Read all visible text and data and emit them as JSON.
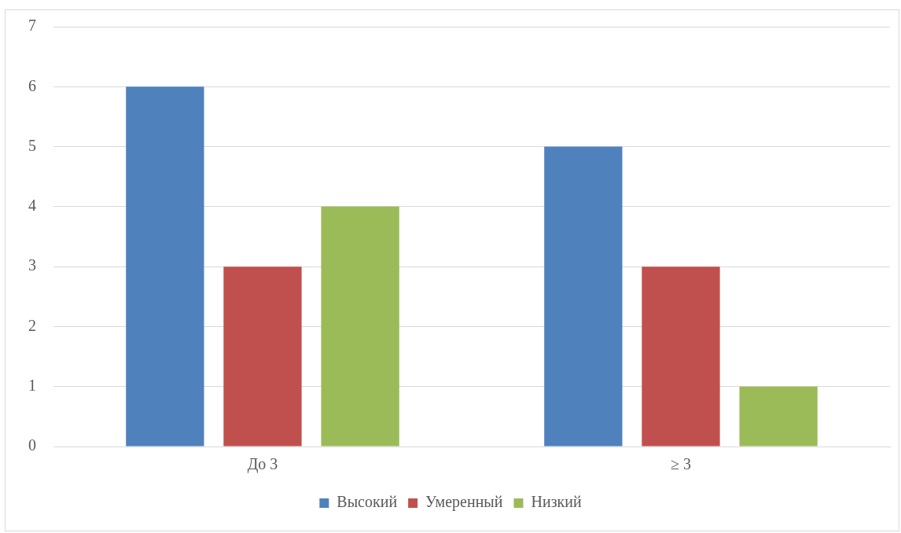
{
  "chart_data": {
    "type": "bar",
    "categories": [
      "До 3",
      "≥ 3"
    ],
    "series": [
      {
        "name": "Высокий",
        "color": "#4f81bd",
        "values": [
          6,
          5
        ]
      },
      {
        "name": "Умеренный",
        "color": "#c0504d",
        "values": [
          3,
          3
        ]
      },
      {
        "name": "Низкий",
        "color": "#9bbb59",
        "values": [
          4,
          1
        ]
      }
    ],
    "ylim": [
      0,
      7
    ],
    "yticks": [
      0,
      1,
      2,
      3,
      4,
      5,
      6,
      7
    ],
    "grid": "y",
    "legend": "bottom"
  }
}
